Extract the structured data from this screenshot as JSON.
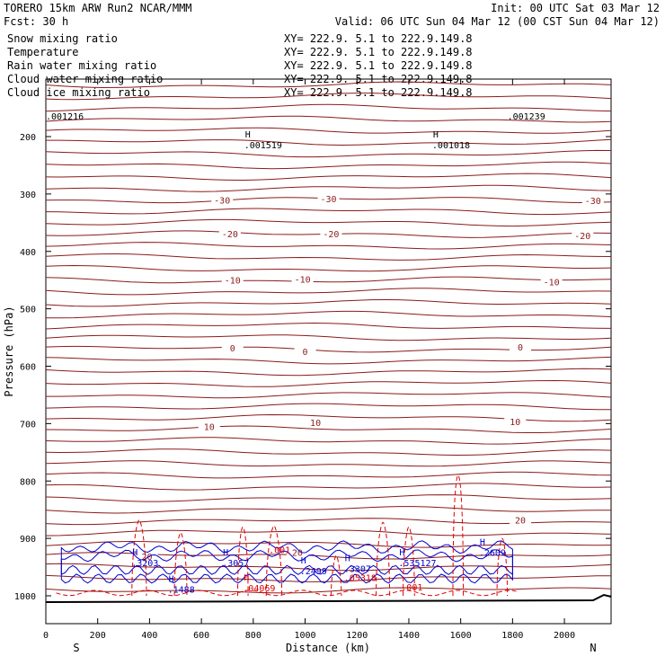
{
  "header": {
    "model": "TORERO  15km ARW   Run2   NCAR/MMM",
    "init": "Init: 00 UTC Sat 03 Mar 12",
    "fcst": "Fcst:   30 h",
    "valid": "Valid: 06 UTC Sun 04 Mar 12 (00 CST Sun 04 Mar 12)"
  },
  "legend": [
    {
      "label": "Snow mixing ratio",
      "xy": "XY= 222.9.  5.1 to 222.9.149.8",
      "color": "#000000"
    },
    {
      "label": "Temperature",
      "xy": "XY= 222.9.  5.1 to 222.9.149.8",
      "color": "#cc0000"
    },
    {
      "label": "Rain water mixing ratio",
      "xy": "XY= 222.9.  5.1 to 222.9.149.8",
      "color": "#cc0000"
    },
    {
      "label": "Cloud water mixing ratio",
      "xy": "XY= 222.9.  5.1 to 222.9.149.8",
      "color": "#0000cc"
    },
    {
      "label": "Cloud ice mixing ratio",
      "xy": "XY= 222.9.  5.1 to 222.9.149.8",
      "color": "#000000"
    }
  ],
  "colors": {
    "temp_line": "#8b1a1a",
    "temp_label": "#8b1a1a",
    "rain": "#dd0000",
    "cloud_water": "#0000cc",
    "ice": "#000000",
    "ground": "#000000"
  },
  "chart_data": {
    "type": "cross-section contour",
    "xlabel": "Distance (km)",
    "ylabel": "Pressure (hPa)",
    "xlim": [
      0,
      2180
    ],
    "ylim": [
      1050,
      100
    ],
    "x_ticks": [
      0,
      200,
      400,
      600,
      800,
      1000,
      1200,
      1400,
      1600,
      1800,
      2000
    ],
    "y_ticks": [
      200,
      300,
      400,
      500,
      600,
      700,
      800,
      900,
      1000
    ],
    "x_end_labels": {
      "left": "S",
      "right": "N"
    },
    "temperature_contour_labels": [
      {
        "x": 680,
        "p": 310,
        "text": "-30"
      },
      {
        "x": 1090,
        "p": 308,
        "text": "-30"
      },
      {
        "x": 2110,
        "p": 311,
        "text": "-30"
      },
      {
        "x": 710,
        "p": 369,
        "text": "-20"
      },
      {
        "x": 1100,
        "p": 369,
        "text": "-20"
      },
      {
        "x": 2070,
        "p": 372,
        "text": "-20"
      },
      {
        "x": 720,
        "p": 450,
        "text": "-10"
      },
      {
        "x": 990,
        "p": 448,
        "text": "-10"
      },
      {
        "x": 1950,
        "p": 453,
        "text": "-10"
      },
      {
        "x": 720,
        "p": 568,
        "text": "0"
      },
      {
        "x": 1000,
        "p": 574,
        "text": "0"
      },
      {
        "x": 1830,
        "p": 566,
        "text": "0"
      },
      {
        "x": 630,
        "p": 705,
        "text": "10"
      },
      {
        "x": 1040,
        "p": 698,
        "text": "10"
      },
      {
        "x": 1810,
        "p": 696,
        "text": "10"
      },
      {
        "x": 1830,
        "p": 868,
        "text": "20"
      },
      {
        "x": 390,
        "p": 931,
        "text": "20"
      },
      {
        "x": 970,
        "p": 924,
        "text": "20"
      }
    ],
    "snow_annotations": [
      {
        "x": 765,
        "p": 208,
        "label": "H",
        "value": ".001519"
      },
      {
        "x": 1490,
        "p": 208,
        "label": "H",
        "value": ".001018"
      },
      {
        "x": 0,
        "p": 158,
        "label": "",
        "value": ".001216"
      },
      {
        "x": 1780,
        "p": 158,
        "label": "",
        "value": ".001239"
      }
    ],
    "cloud_water_annotations": [
      {
        "x": 470,
        "p": 982,
        "label": "H",
        "value": ".1488"
      },
      {
        "x": 680,
        "p": 936,
        "label": "H",
        "value": ".3057"
      },
      {
        "x": 980,
        "p": 950,
        "label": "H",
        "value": ".2499"
      },
      {
        "x": 1150,
        "p": 946,
        "label": "H",
        "value": ".3307"
      },
      {
        "x": 1360,
        "p": 936,
        "label": "H",
        "value": ".535127"
      },
      {
        "x": 1670,
        "p": 918,
        "label": "H",
        "value": ".2609"
      },
      {
        "x": 330,
        "p": 936,
        "label": "H",
        "value": ".3203"
      }
    ],
    "rain_annotations": [
      {
        "x": 860,
        "p": 913,
        "value": ".001"
      },
      {
        "x": 760,
        "p": 980,
        "label": "H",
        "value": ".04069"
      },
      {
        "x": 1150,
        "p": 962,
        "value": ".05318"
      },
      {
        "x": 1370,
        "p": 978,
        "value": ".001"
      }
    ]
  }
}
